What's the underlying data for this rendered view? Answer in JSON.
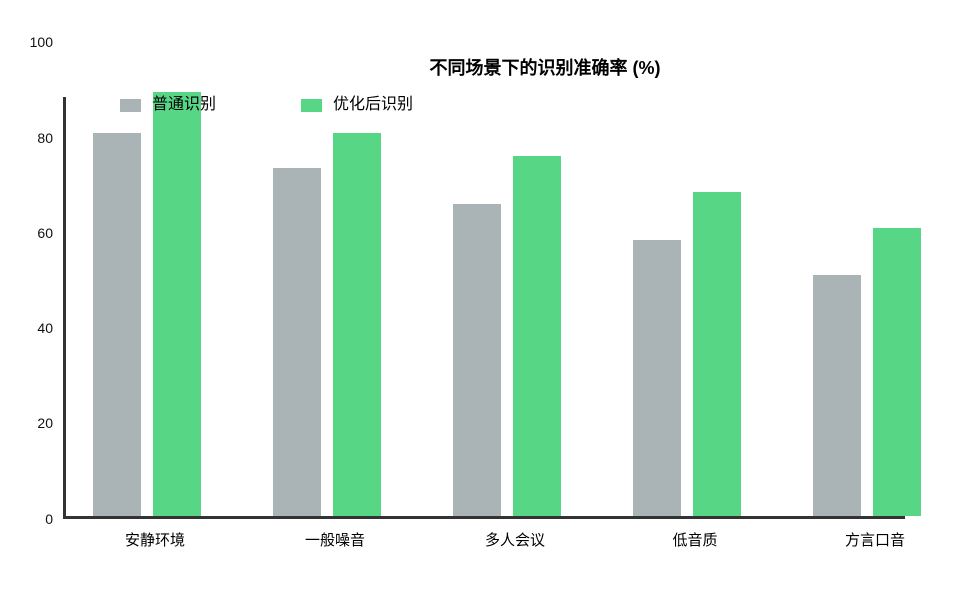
{
  "title": "不同场景下的识别准确率 (%)",
  "legend": {
    "items": [
      {
        "label": "普通识别",
        "color": "#aab4b7"
      },
      {
        "label": "优化后识别",
        "color": "#57d686"
      }
    ]
  },
  "axes": {
    "axis_color": "#333333",
    "y_tick_labels": [
      "0",
      "20",
      "40",
      "60",
      "80",
      "100"
    ]
  },
  "chart_data": {
    "type": "bar",
    "title": "不同场景下的识别准确率 (%)",
    "categories": [
      "安静环境",
      "一般噪音",
      "多人会议",
      "低音质",
      "方言口音"
    ],
    "series": [
      {
        "name": "普通识别",
        "color": "#aab4b7",
        "values": [
          80.5,
          73,
          65.5,
          58,
          50.5
        ]
      },
      {
        "name": "优化后识别",
        "color": "#57d686",
        "values": [
          89,
          80.5,
          75.5,
          68,
          60.5
        ]
      }
    ],
    "xlabel": "",
    "ylabel": "",
    "ylim": [
      0,
      100
    ],
    "yticks": [
      0,
      20,
      40,
      60,
      80,
      100
    ],
    "grid": false,
    "legend_position": "top-left"
  }
}
